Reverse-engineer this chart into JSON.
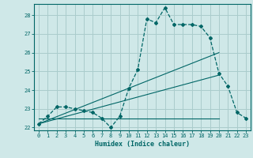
{
  "bg_color": "#cfe8e8",
  "grid_color": "#aacccc",
  "line_color": "#006666",
  "x_min": -0.5,
  "x_max": 23.5,
  "y_min": 21.85,
  "y_max": 28.6,
  "xlabel": "Humidex (Indice chaleur)",
  "main_series_x": [
    0,
    1,
    2,
    3,
    4,
    5,
    6,
    7,
    8,
    9,
    10,
    11,
    12,
    13,
    14,
    15,
    16,
    17,
    18,
    19,
    20,
    21,
    22,
    23
  ],
  "main_series_y": [
    22.2,
    22.6,
    23.1,
    23.1,
    23.0,
    22.9,
    22.8,
    22.5,
    22.0,
    22.6,
    24.1,
    25.1,
    27.8,
    27.6,
    28.4,
    27.5,
    27.5,
    27.5,
    27.4,
    26.8,
    24.9,
    24.2,
    22.8,
    22.5
  ],
  "trend1_x": [
    0,
    20
  ],
  "trend1_y": [
    22.2,
    26.0
  ],
  "trend2_x": [
    0,
    20
  ],
  "trend2_y": [
    22.2,
    24.8
  ],
  "flat_line_x": [
    0,
    20
  ],
  "flat_line_y": [
    22.5,
    22.5
  ],
  "yticks": [
    22,
    23,
    24,
    25,
    26,
    27,
    28
  ],
  "xticks": [
    0,
    1,
    2,
    3,
    4,
    5,
    6,
    7,
    8,
    9,
    10,
    11,
    12,
    13,
    14,
    15,
    16,
    17,
    18,
    19,
    20,
    21,
    22,
    23
  ]
}
